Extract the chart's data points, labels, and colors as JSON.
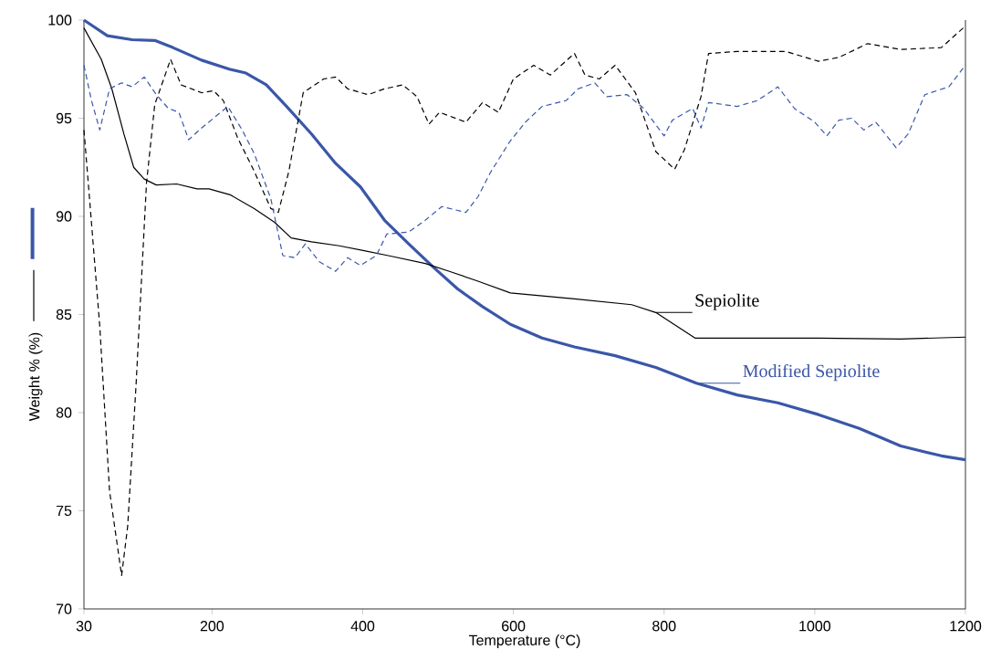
{
  "chart_data": {
    "type": "line",
    "xlabel": "Temperature (°C)",
    "ylabel": "Weight % (%)",
    "xlim": [
      30,
      1200
    ],
    "ylim": [
      70,
      100
    ],
    "xticks": [
      30,
      200,
      400,
      600,
      800,
      1000,
      1200
    ],
    "yticks": [
      70,
      75,
      80,
      85,
      90,
      95,
      100
    ],
    "grid": false,
    "legend": "right",
    "series": [
      {
        "name": "Modified Sepiolite",
        "color": "#3a57a8",
        "line_style": "solid",
        "x": [
          30,
          61,
          94,
          124,
          148,
          186,
          223,
          245,
          272,
          299,
          332,
          364,
          397,
          429,
          461,
          494,
          526,
          559,
          596,
          638,
          681,
          735,
          789,
          843,
          897,
          951,
          1005,
          1059,
          1114,
          1168,
          1200
        ],
        "values": [
          100,
          99.2,
          99.0,
          98.96,
          98.6,
          97.96,
          97.5,
          97.3,
          96.7,
          95.6,
          94.2,
          92.7,
          91.5,
          89.8,
          88.6,
          87.4,
          86.3,
          85.4,
          84.5,
          83.8,
          83.35,
          82.9,
          82.3,
          81.5,
          80.9,
          80.5,
          79.9,
          79.2,
          78.3,
          77.8,
          77.6
        ]
      },
      {
        "name": "Sepiolite",
        "color": "#000000",
        "line_style": "solid",
        "x": [
          30,
          53,
          67,
          83,
          96,
          110,
          126,
          153,
          180,
          196,
          224,
          256,
          283,
          305,
          332,
          369,
          402,
          434,
          483,
          515,
          553,
          596,
          681,
          757,
          789,
          841,
          1005,
          1114,
          1200
        ],
        "values": [
          99.6,
          98.0,
          96.5,
          94.2,
          92.5,
          91.9,
          91.6,
          91.65,
          91.4,
          91.4,
          91.1,
          90.4,
          89.7,
          88.9,
          88.7,
          88.5,
          88.25,
          88.0,
          87.6,
          87.2,
          86.7,
          86.1,
          85.8,
          85.5,
          85.1,
          83.8,
          83.8,
          83.75,
          83.85
        ]
      },
      {
        "color": "#000000",
        "line_style": "dashed",
        "x": [
          30,
          37,
          51,
          64,
          80,
          88,
          99,
          113,
          124,
          145,
          159,
          186,
          202,
          215,
          234,
          256,
          278,
          288,
          302,
          321,
          348,
          364,
          380,
          407,
          429,
          453,
          472,
          488,
          502,
          537,
          559,
          580,
          600,
          627,
          649,
          681,
          695,
          714,
          735,
          762,
          789,
          814,
          827,
          849,
          859,
          897,
          962,
          1005,
          1032,
          1070,
          1114,
          1168,
          1200
        ],
        "values": [
          94.4,
          91.1,
          84.4,
          76.0,
          71.7,
          74.2,
          81.3,
          91.7,
          95.7,
          98.0,
          96.7,
          96.3,
          96.4,
          95.9,
          94.0,
          92.3,
          90.4,
          90.2,
          92.3,
          96.3,
          97.0,
          97.1,
          96.5,
          96.2,
          96.5,
          96.7,
          96.1,
          94.7,
          95.3,
          94.8,
          95.8,
          95.3,
          97.0,
          97.7,
          97.2,
          98.3,
          97.2,
          97.0,
          97.7,
          96.3,
          93.3,
          92.4,
          93.4,
          96.1,
          98.3,
          98.4,
          98.4,
          97.9,
          98.1,
          98.8,
          98.5,
          98.6,
          99.7
        ]
      },
      {
        "color": "#3a57a8",
        "line_style": "dashed",
        "x": [
          30,
          40,
          51,
          64,
          80,
          94,
          110,
          126,
          142,
          156,
          169,
          186,
          202,
          221,
          240,
          256,
          278,
          294,
          310,
          324,
          342,
          364,
          380,
          397,
          418,
          432,
          461,
          483,
          505,
          537,
          553,
          569,
          595,
          616,
          638,
          670,
          686,
          708,
          724,
          751,
          773,
          800,
          811,
          838,
          849,
          859,
          897,
          924,
          951,
          973,
          1000,
          1016,
          1032,
          1049,
          1065,
          1081,
          1108,
          1124,
          1146,
          1178,
          1200
        ],
        "values": [
          97.7,
          95.9,
          94.4,
          96.5,
          96.8,
          96.6,
          97.1,
          96.2,
          95.5,
          95.3,
          93.9,
          94.5,
          95.0,
          95.6,
          94.4,
          93.2,
          90.9,
          88.0,
          87.9,
          88.6,
          87.7,
          87.2,
          87.9,
          87.5,
          88.0,
          89.1,
          89.2,
          89.8,
          90.5,
          90.2,
          91.0,
          92.2,
          93.8,
          94.8,
          95.6,
          95.9,
          96.5,
          96.8,
          96.1,
          96.2,
          95.5,
          94.1,
          94.9,
          95.5,
          94.5,
          95.8,
          95.6,
          95.9,
          96.6,
          95.5,
          94.8,
          94.1,
          94.9,
          95.0,
          94.4,
          94.8,
          93.5,
          94.2,
          96.2,
          96.6,
          97.7
        ]
      }
    ]
  }
}
